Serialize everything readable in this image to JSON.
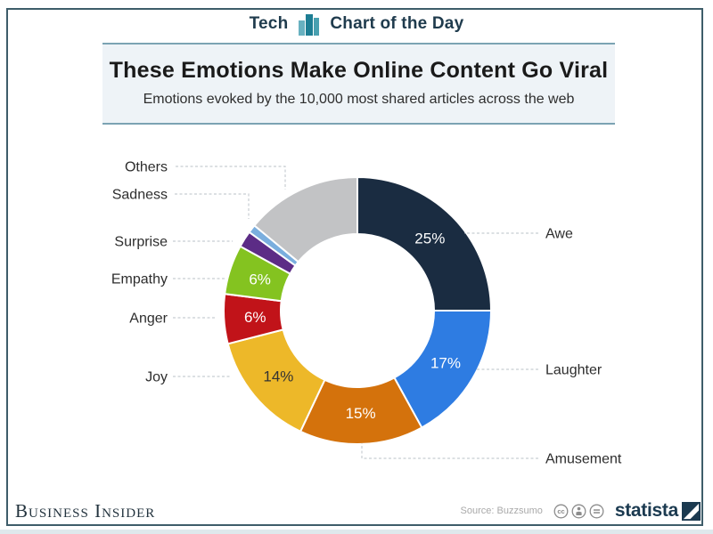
{
  "header": {
    "section_label": "Tech",
    "series_label": "Chart of the Day",
    "icon": "bar-chart-icon"
  },
  "title_block": {
    "title": "These Emotions Make Online Content Go Viral",
    "subtitle": "Emotions evoked by the 10,000 most shared articles across the web"
  },
  "footer": {
    "publisher": "Business Insider",
    "source": "Source: Buzzsumo",
    "license_icons": [
      "cc-icon",
      "attribution-icon",
      "no-derivatives-icon"
    ],
    "brand": "statista"
  },
  "colors": {
    "card_border": "#3e5d6a",
    "header_text": "#1f3b4d",
    "panel_bg": "#eef3f7",
    "panel_border": "#7ba3b3",
    "leader_line": "#c8cdd2",
    "category_label_text": "#2d2d2d",
    "footer_publisher": "#23333e",
    "footer_source": "#a9a9a9",
    "footer_brand": "#1b3a50",
    "icon_teal_light": "#68b1c0",
    "icon_teal_dark": "#1e7e94",
    "page_bottom_strip": "#dfe8ec"
  },
  "chart_data": {
    "type": "pie",
    "subtype": "donut",
    "title": "These Emotions Make Online Content Go Viral",
    "subtitle": "Emotions evoked by the 10,000 most shared articles across the web",
    "unit": "percent",
    "total": 100,
    "start_angle_deg": 0,
    "direction": "clockwise",
    "legend_position": "outside-callouts",
    "source": "Buzzsumo",
    "segments": [
      {
        "label": "Awe",
        "value": 25,
        "data_label": "25%",
        "color": "#1a2c41",
        "data_label_color": "#ffffff"
      },
      {
        "label": "Laughter",
        "value": 17,
        "data_label": "17%",
        "color": "#2e7ce2",
        "data_label_color": "#ffffff"
      },
      {
        "label": "Amusement",
        "value": 15,
        "data_label": "15%",
        "color": "#d4720c",
        "data_label_color": "#ffffff"
      },
      {
        "label": "Joy",
        "value": 14,
        "data_label": "14%",
        "color": "#edb829",
        "data_label_color": "#333333"
      },
      {
        "label": "Anger",
        "value": 6,
        "data_label": "6%",
        "color": "#c11319",
        "data_label_color": "#ffffff"
      },
      {
        "label": "Empathy",
        "value": 6,
        "data_label": "6%",
        "color": "#84c320",
        "data_label_color": "#ffffff"
      },
      {
        "label": "Surprise",
        "value": 2,
        "data_label": "",
        "color": "#5c2c86",
        "data_label_color": "#ffffff"
      },
      {
        "label": "Sadness",
        "value": 1,
        "data_label": "",
        "color": "#7aaede",
        "data_label_color": "#ffffff"
      },
      {
        "label": "Others",
        "value": 14,
        "data_label": "",
        "color": "#c2c3c5",
        "data_label_color": "#ffffff"
      }
    ]
  }
}
